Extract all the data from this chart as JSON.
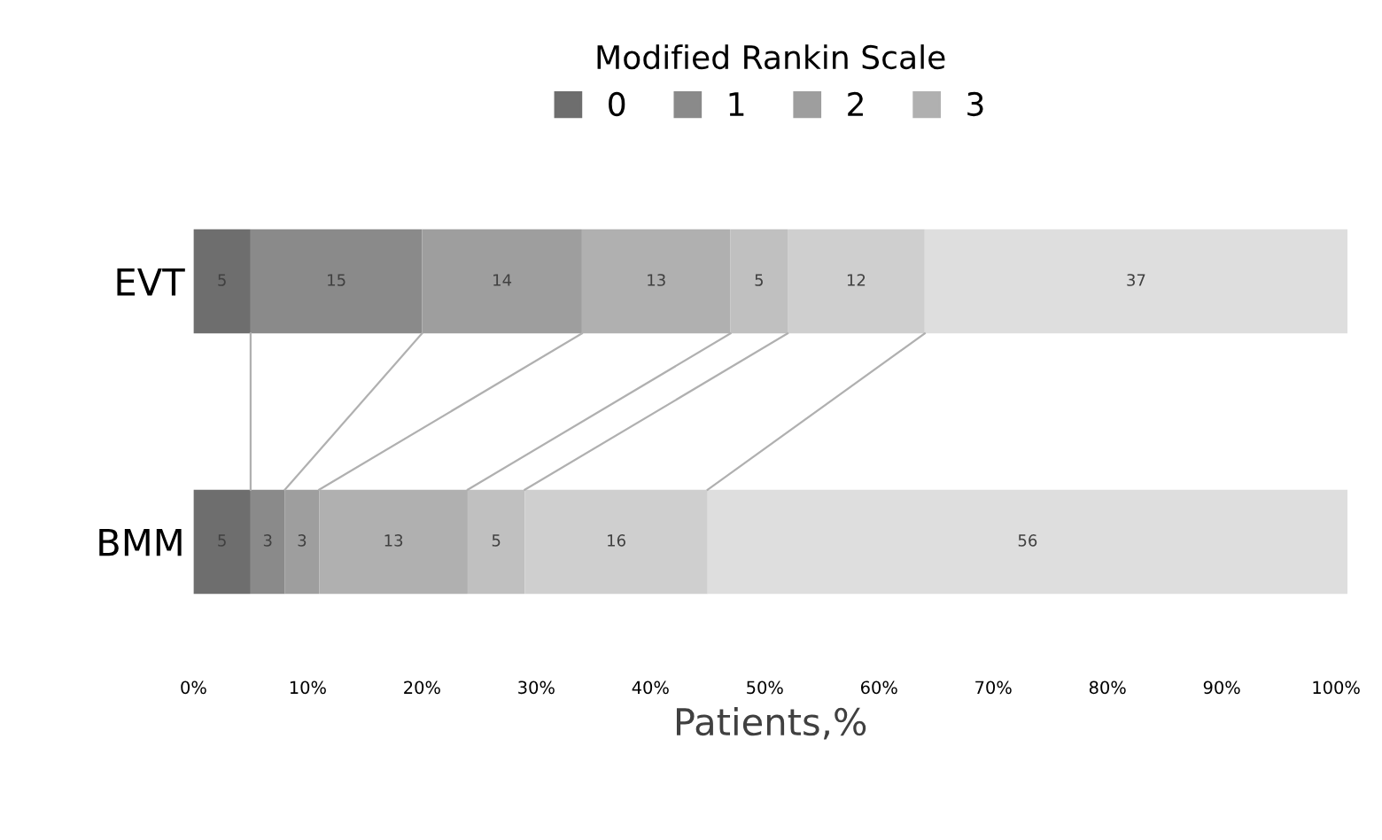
{
  "chart_data": {
    "type": "bar",
    "orientation": "horizontal",
    "stacked": true,
    "legend_title": "Modified Rankin Scale",
    "legend": "top",
    "xlabel": "Patients,%",
    "categories": [
      "EVT",
      "BMM"
    ],
    "series": [
      {
        "name": "0",
        "color": "#6e6e6e",
        "values": [
          5,
          5
        ]
      },
      {
        "name": "1",
        "color": "#8a8a8a",
        "values": [
          15,
          3
        ]
      },
      {
        "name": "2",
        "color": "#9e9e9e",
        "values": [
          14,
          3
        ]
      },
      {
        "name": "3",
        "color": "#b0b0b0",
        "values": [
          13,
          13
        ]
      },
      {
        "color": "#c0c0c0",
        "values": [
          5,
          5
        ]
      },
      {
        "color": "#cfcfcf",
        "values": [
          12,
          16
        ]
      },
      {
        "color": "#dedede",
        "values": [
          37,
          56
        ]
      }
    ],
    "data_labels": true,
    "grid": false,
    "xlim": [
      0,
      101
    ],
    "xticks": [
      {
        "value": 0,
        "label": "0%"
      },
      {
        "value": 10,
        "label": "10%"
      },
      {
        "value": 20,
        "label": "20%"
      },
      {
        "value": 30,
        "label": "30%"
      },
      {
        "value": 40,
        "label": "40%"
      },
      {
        "value": 50,
        "label": "50%"
      },
      {
        "value": 60,
        "label": "60%"
      },
      {
        "value": 70,
        "label": "70%"
      },
      {
        "value": 80,
        "label": "80%"
      },
      {
        "value": 90,
        "label": "90%"
      },
      {
        "value": 100,
        "label": "100%"
      }
    ]
  }
}
